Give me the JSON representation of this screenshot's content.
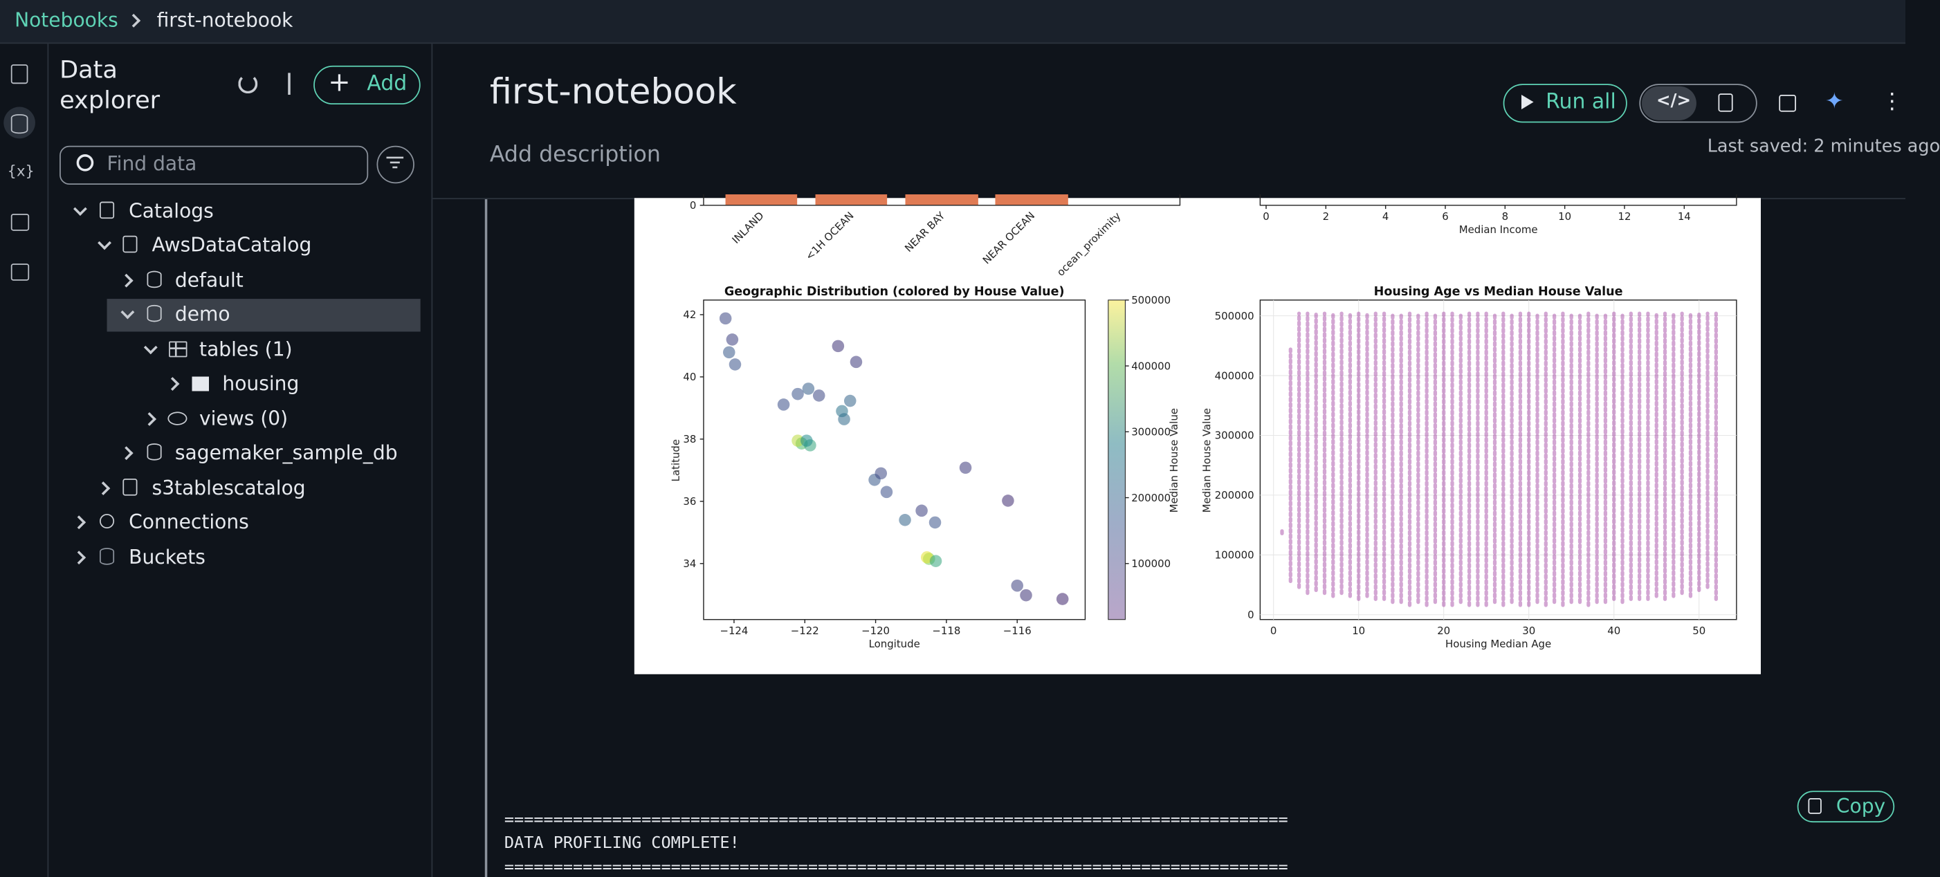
{
  "breadcrumb": [
    "Notebooks",
    "first-notebook"
  ],
  "rail": {
    "variables": "{x}"
  },
  "explorer": {
    "title": "Data explorer",
    "add": "Add",
    "search_placeholder": "Find data",
    "tree": [
      "Catalogs",
      "AwsDataCatalog",
      "default",
      "demo",
      "tables (1)",
      "housing",
      "views (0)",
      "sagemaker_sample_db",
      "s3tablescatalog",
      "Connections",
      "Buckets"
    ]
  },
  "notebook": {
    "title": "first-notebook",
    "description": "Add description",
    "last_saved": "Last saved: 2 minutes ago"
  },
  "toolbar": {
    "run_all": "Run all"
  },
  "output": {
    "copy": "Copy",
    "text": [
      "================================================================================",
      "DATA PROFILING COMPLETE!",
      "================================================================================"
    ],
    "proximity_chart": {
      "yticks": [
        0
      ],
      "categories": [
        "INLAND",
        "<1H OCEAN",
        "NEAR BAY",
        "NEAR OCEAN"
      ],
      "xlabel": "ocean_proximity"
    },
    "income_chart": {
      "xlim": [
        -0.2,
        15.75
      ],
      "xticks": [
        0,
        2,
        4,
        6,
        8,
        10,
        12,
        14
      ],
      "xlabel": "Median Income"
    },
    "geo_chart": {
      "title": "Geographic Distribution (colored by House Value)",
      "xlabel": "Longitude",
      "ylabel": "Latitude",
      "xlim": [
        -124.86,
        -114.08
      ],
      "ylim": [
        32.2,
        42.47
      ],
      "xticks": [
        {
          "value": -124,
          "label": "−124"
        },
        {
          "value": -122,
          "label": "−122"
        },
        {
          "value": -120,
          "label": "−120"
        },
        {
          "value": -118,
          "label": "−118"
        },
        {
          "value": -116,
          "label": "−116"
        }
      ],
      "yticks": [
        34,
        36,
        38,
        40,
        42
      ],
      "colorbar": {
        "label": "Median House Value",
        "lim": [
          14999,
          500001
        ],
        "ticks": [
          100000,
          200000,
          300000,
          400000,
          500000
        ]
      },
      "points": [
        [
          -124.24,
          41.88,
          120000
        ],
        [
          -124.14,
          40.79,
          150000
        ],
        [
          -123.97,
          40.4,
          140000
        ],
        [
          -124.05,
          41.2,
          110000
        ],
        [
          -122.6,
          39.11,
          130000
        ],
        [
          -121.9,
          39.62,
          160000
        ],
        [
          -122.2,
          39.45,
          140000
        ],
        [
          -121.6,
          39.4,
          120000
        ],
        [
          -122.09,
          37.86,
          350000
        ],
        [
          -122.2,
          37.95,
          450000
        ],
        [
          -121.85,
          37.8,
          300000
        ],
        [
          -121.95,
          37.95,
          250000
        ],
        [
          -120.89,
          38.64,
          180000
        ],
        [
          -120.72,
          39.23,
          170000
        ],
        [
          -120.95,
          38.9,
          200000
        ],
        [
          -120.55,
          40.48,
          100000
        ],
        [
          -121.06,
          40.99,
          90000
        ],
        [
          -120.03,
          36.69,
          150000
        ],
        [
          -119.69,
          36.3,
          130000
        ],
        [
          -119.85,
          36.9,
          120000
        ],
        [
          -119.17,
          35.4,
          170000
        ],
        [
          -118.32,
          35.32,
          140000
        ],
        [
          -118.7,
          35.7,
          110000
        ],
        [
          -118.49,
          34.15,
          400000
        ],
        [
          -118.55,
          34.2,
          480000
        ],
        [
          -118.3,
          34.08,
          300000
        ],
        [
          -117.46,
          37.08,
          100000
        ],
        [
          -116.26,
          36.02,
          80000
        ],
        [
          -115.75,
          32.98,
          90000
        ],
        [
          -116.0,
          33.29,
          110000
        ],
        [
          -114.72,
          32.86,
          70000
        ]
      ]
    },
    "age_chart": {
      "title": "Housing Age vs Median House Value",
      "xlabel": "Housing Median Age",
      "ylabel": "Median House Value",
      "xlim": [
        -1.57,
        54.4
      ],
      "ylim": [
        -8130,
        526400
      ],
      "xticks": [
        0,
        10,
        20,
        30,
        40,
        50
      ],
      "yticks": [
        0,
        100000,
        200000,
        300000,
        400000,
        500000
      ],
      "x": [
        1,
        2,
        3,
        4,
        5,
        6,
        7,
        8,
        9,
        10,
        11,
        12,
        13,
        14,
        15,
        16,
        17,
        18,
        19,
        20,
        21,
        22,
        23,
        24,
        25,
        26,
        27,
        28,
        29,
        30,
        31,
        32,
        33,
        34,
        35,
        36,
        37,
        38,
        39,
        40,
        41,
        42,
        43,
        44,
        45,
        46,
        47,
        48,
        49,
        50,
        51,
        52
      ],
      "low": [
        140000,
        60000,
        50000,
        40000,
        45000,
        40000,
        35000,
        40000,
        35000,
        30000,
        35000,
        30000,
        30000,
        25000,
        25000,
        20000,
        25000,
        20000,
        25000,
        20000,
        20000,
        25000,
        20000,
        20000,
        20000,
        25000,
        20000,
        25000,
        20000,
        20000,
        25000,
        20000,
        25000,
        20000,
        25000,
        25000,
        20000,
        25000,
        25000,
        30000,
        25000,
        30000,
        30000,
        30000,
        35000,
        30000,
        35000,
        40000,
        35000,
        45000,
        50000,
        30000
      ],
      "high": [
        140000,
        440000,
        500001,
        500001,
        500001,
        500001,
        500001,
        500001,
        500001,
        500001,
        500001,
        500001,
        500001,
        500001,
        500001,
        500001,
        500001,
        500001,
        500001,
        500001,
        500001,
        500001,
        500001,
        500001,
        500001,
        500001,
        500001,
        500001,
        500001,
        500001,
        500001,
        500001,
        500001,
        500001,
        500001,
        500001,
        500001,
        500001,
        500001,
        500001,
        500001,
        500001,
        500001,
        500001,
        500001,
        500001,
        500001,
        500001,
        500001,
        500001,
        500001,
        500001
      ]
    }
  }
}
